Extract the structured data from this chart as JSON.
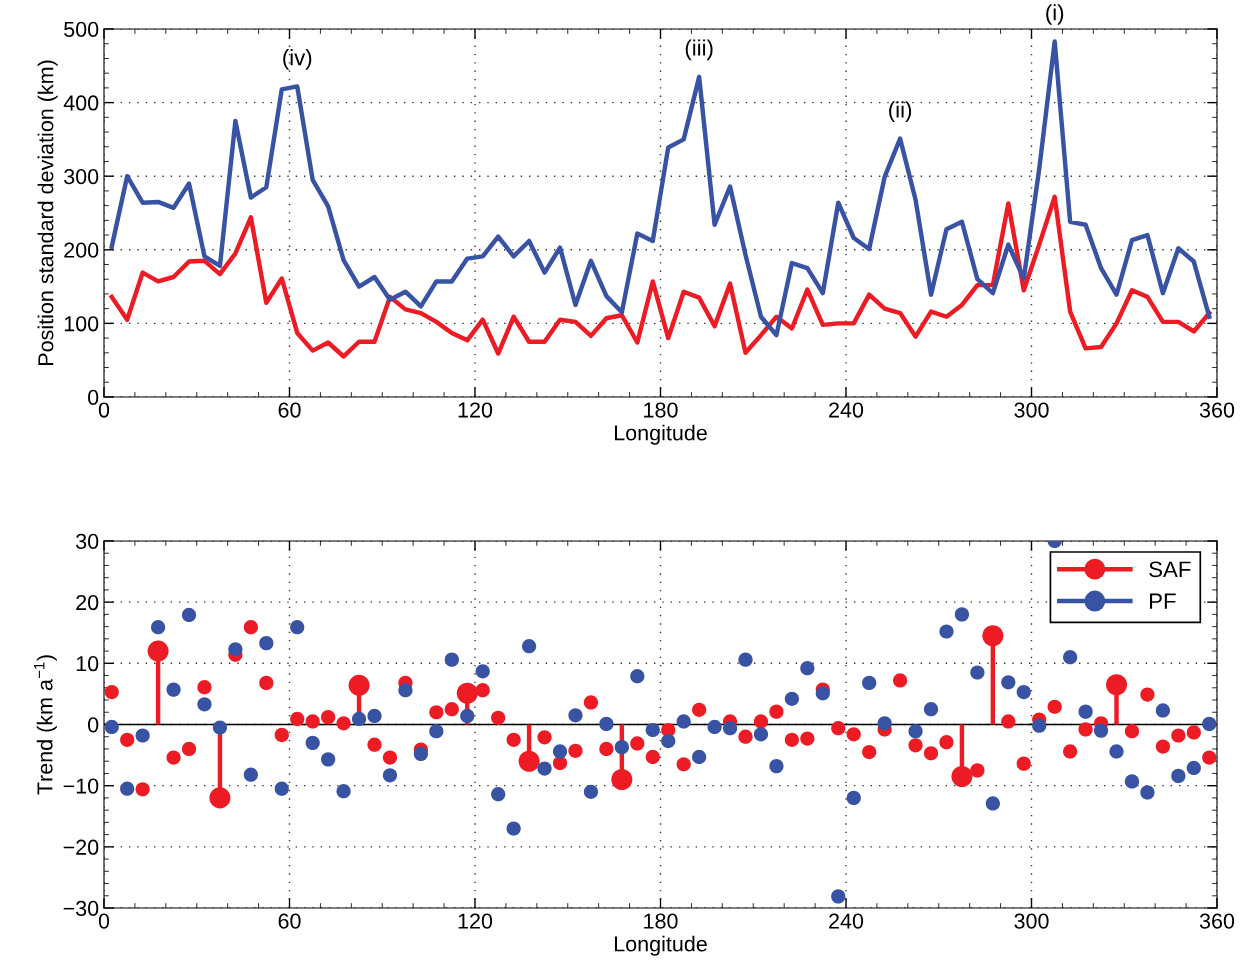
{
  "chart_data": [
    {
      "type": "line",
      "xlabel": "Longitude",
      "ylabel": "Position standard deviation (km)",
      "x": [
        2.5,
        7.5,
        12.5,
        17.5,
        22.5,
        27.5,
        32.5,
        37.5,
        42.5,
        47.5,
        52.5,
        57.5,
        62.5,
        67.5,
        72.5,
        77.5,
        82.5,
        87.5,
        92.5,
        97.5,
        102.5,
        107.5,
        112.5,
        117.5,
        122.5,
        127.5,
        132.5,
        137.5,
        142.5,
        147.5,
        152.5,
        157.5,
        162.5,
        167.5,
        172.5,
        177.5,
        182.5,
        187.5,
        192.5,
        197.5,
        202.5,
        207.5,
        212.5,
        217.5,
        222.5,
        227.5,
        232.5,
        237.5,
        242.5,
        247.5,
        252.5,
        257.5,
        262.5,
        267.5,
        272.5,
        277.5,
        282.5,
        287.5,
        292.5,
        297.5,
        302.5,
        307.5,
        312.5,
        317.5,
        322.5,
        327.5,
        332.5,
        337.5,
        342.5,
        347.5,
        352.5,
        357.5
      ],
      "series": [
        {
          "color": "#ed1c24",
          "values": [
            136,
            105,
            169,
            157,
            163,
            184,
            185,
            167,
            195,
            244,
            128,
            161,
            87,
            63,
            74,
            55,
            75,
            75,
            136,
            119,
            114,
            102,
            87,
            77,
            105,
            59,
            109,
            75,
            75,
            105,
            102,
            83,
            107,
            111,
            74,
            157,
            80,
            143,
            135,
            96,
            154,
            60,
            84,
            109,
            93,
            146,
            98,
            100,
            100,
            139,
            120,
            114,
            82,
            116,
            109,
            125,
            152,
            152,
            263,
            145,
            207,
            272,
            116,
            66,
            68,
            100,
            145,
            136,
            102,
            102,
            89,
            114
          ]
        },
        {
          "color": "#3953a4",
          "values": [
            204,
            300,
            264,
            265,
            257,
            290,
            191,
            178,
            375,
            271,
            285,
            418,
            422,
            295,
            259,
            186,
            150,
            163,
            132,
            143,
            123,
            157,
            157,
            188,
            191,
            218,
            191,
            212,
            169,
            203,
            125,
            185,
            137,
            115,
            222,
            212,
            339,
            350,
            435,
            234,
            286,
            193,
            109,
            84,
            182,
            175,
            141,
            264,
            216,
            201,
            299,
            351,
            268,
            139,
            228,
            238,
            160,
            141,
            207,
            161,
            310,
            483,
            238,
            234,
            175,
            139,
            213,
            220,
            141,
            202,
            184,
            109
          ]
        }
      ],
      "xlim": [
        0,
        360
      ],
      "xticks": [
        0,
        60,
        120,
        180,
        240,
        300,
        360
      ],
      "ylim": [
        0,
        500
      ],
      "yticks": [
        0,
        100,
        200,
        300,
        400,
        500
      ],
      "grid": true,
      "annotations": [
        {
          "text": "(iv)",
          "x": 62.5,
          "y": 422
        },
        {
          "text": "(iii)",
          "x": 192.5,
          "y": 435
        },
        {
          "text": "(ii)",
          "x": 257.5,
          "y": 351
        },
        {
          "text": "(i)",
          "x": 307.5,
          "y": 483
        }
      ]
    },
    {
      "type": "scatter",
      "xlabel": "Longitude",
      "ylabel": "Trend (km a$^{−1}$)",
      "x": [
        2.5,
        7.5,
        12.5,
        17.5,
        22.5,
        27.5,
        32.5,
        37.5,
        42.5,
        47.5,
        52.5,
        57.5,
        62.5,
        67.5,
        72.5,
        77.5,
        82.5,
        87.5,
        92.5,
        97.5,
        102.5,
        107.5,
        112.5,
        117.5,
        122.5,
        127.5,
        132.5,
        137.5,
        142.5,
        147.5,
        152.5,
        157.5,
        162.5,
        167.5,
        172.5,
        177.5,
        182.5,
        187.5,
        192.5,
        197.5,
        202.5,
        207.5,
        212.5,
        217.5,
        222.5,
        227.5,
        232.5,
        237.5,
        242.5,
        247.5,
        252.5,
        257.5,
        262.5,
        267.5,
        272.5,
        277.5,
        282.5,
        287.5,
        292.5,
        297.5,
        302.5,
        307.5,
        312.5,
        317.5,
        322.5,
        327.5,
        332.5,
        337.5,
        342.5,
        347.5,
        352.5,
        357.5
      ],
      "series": [
        {
          "name": "SAF",
          "color": "#ed1c24",
          "values": [
            5.3,
            -2.5,
            -10.6,
            null,
            -5.4,
            -4.0,
            6.1,
            null,
            11.4,
            15.9,
            6.8,
            -1.7,
            0.9,
            0.5,
            1.2,
            0.2,
            null,
            -3.3,
            -5.4,
            6.8,
            -4.1,
            2.0,
            2.5,
            null,
            5.6,
            1.1,
            -2.5,
            null,
            -2.1,
            -6.3,
            -4.3,
            3.6,
            -4.0,
            null,
            -3.1,
            -5.3,
            -0.9,
            -6.5,
            2.4,
            null,
            0.5,
            -2.0,
            0.5,
            2.1,
            -2.5,
            -2.3,
            5.7,
            -0.6,
            -1.6,
            -4.5,
            -0.8,
            7.2,
            -3.4,
            -4.7,
            -2.9,
            null,
            -7.5,
            null,
            0.5,
            -6.4,
            0.8,
            2.9,
            -4.4,
            -0.8,
            0.2,
            null,
            -1.1,
            4.9,
            -3.6,
            -1.8,
            -1.3,
            -5.4
          ]
        },
        {
          "type": "lollipop",
          "color": "#ed1c24",
          "values": [
            null,
            null,
            null,
            12.0,
            null,
            null,
            null,
            -12.0,
            null,
            null,
            null,
            null,
            null,
            null,
            null,
            null,
            6.4,
            null,
            null,
            null,
            null,
            null,
            null,
            5.1,
            null,
            null,
            null,
            -6.0,
            null,
            null,
            null,
            null,
            null,
            -9.0,
            null,
            null,
            null,
            null,
            null,
            null,
            null,
            null,
            null,
            null,
            null,
            null,
            null,
            null,
            null,
            null,
            null,
            null,
            null,
            null,
            null,
            -8.5,
            null,
            14.5,
            null,
            null,
            null,
            null,
            null,
            null,
            null,
            6.5,
            null,
            null,
            null,
            null,
            null,
            null
          ]
        },
        {
          "name": "PF",
          "color": "#3953a4",
          "values": [
            -0.4,
            -10.5,
            -1.8,
            15.9,
            5.7,
            17.9,
            3.3,
            -0.5,
            12.3,
            -8.2,
            13.3,
            -10.5,
            15.9,
            -3.0,
            -5.7,
            -10.9,
            0.9,
            1.4,
            -8.3,
            5.6,
            -4.8,
            -1.1,
            10.6,
            1.4,
            8.7,
            -11.4,
            -17.0,
            12.8,
            -7.2,
            -4.4,
            1.5,
            -11.0,
            0.1,
            -3.7,
            7.9,
            -0.9,
            -2.7,
            0.5,
            -5.3,
            -0.4,
            -0.6,
            10.6,
            -1.6,
            -6.8,
            4.2,
            9.2,
            5.1,
            -28.1,
            -12.0,
            6.8,
            0.2,
            null,
            -1.1,
            2.5,
            15.2,
            18.0,
            8.5,
            -12.9,
            6.9,
            5.3,
            -0.2,
            30.0,
            11.0,
            2.1,
            -1.0,
            -4.4,
            -9.3,
            -11.1,
            2.3,
            -8.4,
            -7.1,
            0.1
          ]
        }
      ],
      "xlim": [
        0,
        360
      ],
      "xticks": [
        0,
        60,
        120,
        180,
        240,
        300,
        360
      ],
      "ylim": [
        -30,
        30
      ],
      "yticks": [
        {
          "value": -30,
          "label": "−30"
        },
        {
          "value": -20,
          "label": "−20"
        },
        {
          "value": -10,
          "label": "−10"
        },
        0,
        10,
        20,
        30
      ],
      "ref_lines": [
        {
          "axis": "y",
          "value": 0,
          "color": "#000000"
        }
      ],
      "grid": true,
      "legend": "top right",
      "marker": "circle"
    }
  ]
}
